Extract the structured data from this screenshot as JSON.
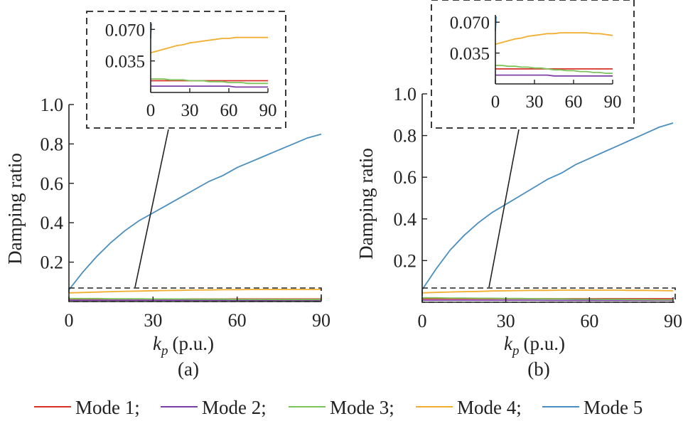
{
  "figure": {
    "legend_items": [
      {
        "label": "Mode 1;",
        "color": "#d73027"
      },
      {
        "label": "Mode 2;",
        "color": "#7b3fa6"
      },
      {
        "label": "Mode 3;",
        "color": "#7cc35a"
      },
      {
        "label": "Mode 4;",
        "color": "#f2ae2e"
      },
      {
        "label": "Mode 5",
        "color": "#4a8fc0"
      }
    ]
  },
  "chart_data": [
    {
      "type": "line",
      "panel_label": "(a)",
      "xlabel_main": "k",
      "xlabel_sub": "p",
      "xlabel_unit": "(p.u.)",
      "ylabel": "Damping ratio",
      "xlim": [
        0,
        90
      ],
      "ylim": [
        0,
        1.0
      ],
      "xticks": [
        "0",
        "30",
        "60",
        "90"
      ],
      "yticks": [
        "0.2",
        "0.4",
        "0.6",
        "0.8",
        "1.0"
      ],
      "x": [
        0,
        5,
        10,
        15,
        20,
        25,
        30,
        35,
        40,
        45,
        50,
        55,
        60,
        65,
        70,
        75,
        80,
        85,
        90
      ],
      "series": [
        {
          "name": "Mode 1",
          "color": "#d73027",
          "values": [
            0.013,
            0.013,
            0.013,
            0.013,
            0.013,
            0.013,
            0.013,
            0.013,
            0.013,
            0.013,
            0.013,
            0.013,
            0.013,
            0.013,
            0.013,
            0.013,
            0.013,
            0.013,
            0.013
          ]
        },
        {
          "name": "Mode 2",
          "color": "#7b3fa6",
          "values": [
            0.007,
            0.007,
            0.007,
            0.007,
            0.007,
            0.007,
            0.007,
            0.007,
            0.007,
            0.007,
            0.007,
            0.007,
            0.007,
            0.006,
            0.006,
            0.006,
            0.006,
            0.006,
            0.006
          ]
        },
        {
          "name": "Mode 3",
          "color": "#7cc35a",
          "values": [
            0.015,
            0.015,
            0.015,
            0.014,
            0.014,
            0.014,
            0.013,
            0.013,
            0.013,
            0.012,
            0.012,
            0.012,
            0.011,
            0.011,
            0.011,
            0.01,
            0.01,
            0.01,
            0.01
          ]
        },
        {
          "name": "Mode 4",
          "color": "#f2ae2e",
          "values": [
            0.044,
            0.046,
            0.048,
            0.05,
            0.052,
            0.053,
            0.055,
            0.056,
            0.057,
            0.058,
            0.059,
            0.06,
            0.06,
            0.061,
            0.061,
            0.061,
            0.061,
            0.061,
            0.061
          ]
        },
        {
          "name": "Mode 5",
          "color": "#4a8fc0",
          "values": [
            0.06,
            0.15,
            0.23,
            0.3,
            0.36,
            0.41,
            0.45,
            0.49,
            0.53,
            0.57,
            0.61,
            0.64,
            0.68,
            0.71,
            0.74,
            0.77,
            0.8,
            0.83,
            0.85
          ]
        }
      ],
      "inset": {
        "xlim": [
          0,
          90
        ],
        "ylim": [
          0,
          0.075
        ],
        "xticks": [
          "0",
          "30",
          "60",
          "90"
        ],
        "yticks": [
          "0.035",
          "0.070"
        ],
        "zoom_region": {
          "xlim": [
            0,
            90
          ],
          "ylim": [
            -0.005,
            0.07
          ]
        }
      }
    },
    {
      "type": "line",
      "panel_label": "(b)",
      "xlabel_main": "k",
      "xlabel_sub": "p",
      "xlabel_unit": "(p.u.)",
      "ylabel": "Damping ratio",
      "xlim": [
        0,
        90
      ],
      "ylim": [
        0,
        1.0
      ],
      "xticks": [
        "0",
        "30",
        "60",
        "90"
      ],
      "yticks": [
        "0.2",
        "0.4",
        "0.6",
        "0.8",
        "1.0"
      ],
      "x": [
        0,
        5,
        10,
        15,
        20,
        25,
        30,
        35,
        40,
        45,
        50,
        55,
        60,
        65,
        70,
        75,
        80,
        85,
        90
      ],
      "series": [
        {
          "name": "Mode 1",
          "color": "#d73027",
          "values": [
            0.017,
            0.017,
            0.017,
            0.017,
            0.017,
            0.017,
            0.017,
            0.017,
            0.017,
            0.017,
            0.017,
            0.017,
            0.017,
            0.017,
            0.017,
            0.017,
            0.017,
            0.017,
            0.017
          ]
        },
        {
          "name": "Mode 2",
          "color": "#7b3fa6",
          "values": [
            0.01,
            0.01,
            0.01,
            0.01,
            0.01,
            0.01,
            0.01,
            0.01,
            0.01,
            0.009,
            0.009,
            0.009,
            0.009,
            0.009,
            0.009,
            0.009,
            0.009,
            0.009,
            0.009
          ]
        },
        {
          "name": "Mode 3",
          "color": "#7cc35a",
          "values": [
            0.021,
            0.021,
            0.02,
            0.02,
            0.019,
            0.019,
            0.018,
            0.018,
            0.017,
            0.016,
            0.016,
            0.015,
            0.015,
            0.014,
            0.014,
            0.013,
            0.013,
            0.012,
            0.012
          ]
        },
        {
          "name": "Mode 4",
          "color": "#f2ae2e",
          "values": [
            0.045,
            0.047,
            0.049,
            0.051,
            0.052,
            0.054,
            0.055,
            0.056,
            0.057,
            0.057,
            0.058,
            0.058,
            0.058,
            0.058,
            0.058,
            0.057,
            0.057,
            0.056,
            0.055
          ]
        },
        {
          "name": "Mode 5",
          "color": "#4a8fc0",
          "values": [
            0.06,
            0.16,
            0.25,
            0.32,
            0.38,
            0.43,
            0.47,
            0.51,
            0.55,
            0.59,
            0.62,
            0.66,
            0.69,
            0.72,
            0.75,
            0.78,
            0.81,
            0.84,
            0.86
          ]
        }
      ],
      "inset": {
        "xlim": [
          0,
          90
        ],
        "ylim": [
          0,
          0.075
        ],
        "xticks": [
          "0",
          "30",
          "60",
          "90"
        ],
        "yticks": [
          "0.035",
          "0.070"
        ],
        "zoom_region": {
          "xlim": [
            0,
            90
          ],
          "ylim": [
            -0.005,
            0.07
          ]
        }
      }
    }
  ]
}
